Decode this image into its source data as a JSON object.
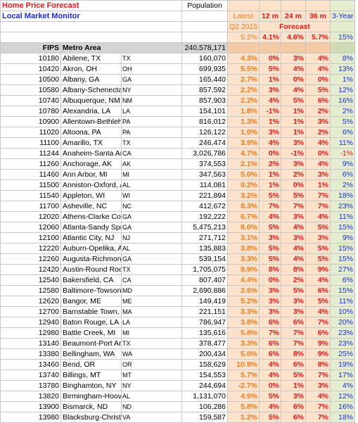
{
  "header": {
    "title": "Home Price Forecast",
    "subtitle": "Local Market Monitor",
    "population_label": "Population",
    "latest_label": "Latest",
    "m12_label": "12 m",
    "m24_label": "24 m",
    "m36_label": "36 m",
    "y3_label": "3-Year",
    "quarter_label": "Q2 2015",
    "forecast_label": "Forecast"
  },
  "summary": {
    "latest": "5.2%",
    "m12": "4.1%",
    "m24": "4.6%",
    "m36": "5.7%",
    "y3": "15%"
  },
  "columns": {
    "fips": "FIPS",
    "metro": "Metro Area",
    "population": "240,578,171"
  },
  "rows": [
    {
      "fips": "10180",
      "name": "Abilene, TX",
      "st": "TX",
      "pop": "160,070",
      "latest": "4.3%",
      "m12": "0%",
      "m24": "3%",
      "m36": "4%",
      "y3": "8%"
    },
    {
      "fips": "10420",
      "name": "Akron, OH",
      "st": "OH",
      "pop": "699,935",
      "latest": "5.5%",
      "m12": "5%",
      "m24": "4%",
      "m36": "4%",
      "y3": "13%"
    },
    {
      "fips": "10500",
      "name": "Albany, GA",
      "st": "GA",
      "pop": "165,440",
      "latest": "2.7%",
      "m12": "1%",
      "m24": "0%",
      "m36": "0%",
      "y3": "1%"
    },
    {
      "fips": "10580",
      "name": "Albany-Schenectady-Troy, NY",
      "st": "NY",
      "pop": "857,592",
      "latest": "2.2%",
      "m12": "3%",
      "m24": "4%",
      "m36": "5%",
      "y3": "12%"
    },
    {
      "fips": "10740",
      "name": "Albuquerque, NM",
      "st": "NM",
      "pop": "857,903",
      "latest": "2.2%",
      "m12": "4%",
      "m24": "5%",
      "m36": "6%",
      "y3": "16%"
    },
    {
      "fips": "10780",
      "name": "Alexandria, LA",
      "st": "LA",
      "pop": "154,101",
      "latest": "1.8%",
      "m12": "-1%",
      "m24": "1%",
      "m36": "2%",
      "y3": "2%"
    },
    {
      "fips": "10900",
      "name": "Allentown-Bethlehem-Easton, PA",
      "st": "PA",
      "pop": "816,012",
      "latest": "1.3%",
      "m12": "1%",
      "m24": "1%",
      "m36": "3%",
      "y3": "5%"
    },
    {
      "fips": "11020",
      "name": "Altoona, PA",
      "st": "PA",
      "pop": "126,122",
      "latest": "1.0%",
      "m12": "3%",
      "m24": "1%",
      "m36": "2%",
      "y3": "6%"
    },
    {
      "fips": "11100",
      "name": "Amarillo, TX",
      "st": "TX",
      "pop": "246,474",
      "latest": "3.9%",
      "m12": "4%",
      "m24": "3%",
      "m36": "4%",
      "y3": "11%"
    },
    {
      "fips": "11244",
      "name": "Anaheim-Santa Ana CA (MSAD)",
      "st": "CA",
      "pop": "3,026,786",
      "latest": "4.7%",
      "m12": "0%",
      "m24": "-1%",
      "m36": "0%",
      "y3": "-1%"
    },
    {
      "fips": "11260",
      "name": "Anchorage, AK",
      "st": "AK",
      "pop": "374,553",
      "latest": "2.1%",
      "m12": "2%",
      "m24": "3%",
      "m36": "4%",
      "y3": "9%"
    },
    {
      "fips": "11460",
      "name": "Ann Arbor, MI",
      "st": "MI",
      "pop": "347,563",
      "latest": "5.0%",
      "m12": "1%",
      "m24": "2%",
      "m36": "3%",
      "y3": "6%"
    },
    {
      "fips": "11500",
      "name": "Anniston-Oxford, AL",
      "st": "AL",
      "pop": "114,081",
      "latest": "0.2%",
      "m12": "1%",
      "m24": "0%",
      "m36": "1%",
      "y3": "2%"
    },
    {
      "fips": "11540",
      "name": "Appleton, WI",
      "st": "WI",
      "pop": "221,894",
      "latest": "3.2%",
      "m12": "5%",
      "m24": "5%",
      "m36": "7%",
      "y3": "18%"
    },
    {
      "fips": "11700",
      "name": "Asheville, NC",
      "st": "NC",
      "pop": "412,672",
      "latest": "8.3%",
      "m12": "7%",
      "m24": "7%",
      "m36": "7%",
      "y3": "23%"
    },
    {
      "fips": "12020",
      "name": "Athens-Clarke County, GA",
      "st": "GA",
      "pop": "192,222",
      "latest": "6.7%",
      "m12": "4%",
      "m24": "3%",
      "m36": "4%",
      "y3": "11%"
    },
    {
      "fips": "12060",
      "name": "Atlanta-Sandy Springs-Marietta, GA",
      "st": "GA",
      "pop": "5,475,213",
      "latest": "8.0%",
      "m12": "5%",
      "m24": "4%",
      "m36": "5%",
      "y3": "15%"
    },
    {
      "fips": "12100",
      "name": "Atlantic City, NJ",
      "st": "NJ",
      "pop": "271,712",
      "latest": "3.1%",
      "m12": "3%",
      "m24": "3%",
      "m36": "3%",
      "y3": "9%"
    },
    {
      "fips": "12220",
      "name": "Auburn-Opelika, AL",
      "st": "AL",
      "pop": "135,883",
      "latest": "3.8%",
      "m12": "5%",
      "m24": "4%",
      "m36": "5%",
      "y3": "15%"
    },
    {
      "fips": "12260",
      "name": "Augusta-Richmond County, GA",
      "st": "GA",
      "pop": "539,154",
      "latest": "3.3%",
      "m12": "5%",
      "m24": "4%",
      "m36": "5%",
      "y3": "15%"
    },
    {
      "fips": "12420",
      "name": "Austin-Round Rock, TX",
      "st": "TX",
      "pop": "1,705,075",
      "latest": "9.9%",
      "m12": "8%",
      "m24": "8%",
      "m36": "9%",
      "y3": "27%"
    },
    {
      "fips": "12540",
      "name": "Bakersfield, CA",
      "st": "CA",
      "pop": "807,407",
      "latest": "4.4%",
      "m12": "0%",
      "m24": "2%",
      "m36": "4%",
      "y3": "6%"
    },
    {
      "fips": "12580",
      "name": "Baltimore-Towson, MD",
      "st": "MD",
      "pop": "2,690,886",
      "latest": "2.6%",
      "m12": "3%",
      "m24": "5%",
      "m36": "6%",
      "y3": "15%"
    },
    {
      "fips": "12620",
      "name": "Bangor, ME",
      "st": "ME",
      "pop": "149,419",
      "latest": "5.2%",
      "m12": "3%",
      "m24": "3%",
      "m36": "5%",
      "y3": "11%"
    },
    {
      "fips": "12700",
      "name": "Barnstable Town, MA",
      "st": "MA",
      "pop": "221,151",
      "latest": "3.3%",
      "m12": "3%",
      "m24": "3%",
      "m36": "4%",
      "y3": "10%"
    },
    {
      "fips": "12940",
      "name": "Baton Rouge, LA",
      "st": "LA",
      "pop": "786,947",
      "latest": "3.8%",
      "m12": "6%",
      "m24": "6%",
      "m36": "7%",
      "y3": "20%"
    },
    {
      "fips": "12980",
      "name": "Battle Creek, MI",
      "st": "MI",
      "pop": "135,616",
      "latest": "5.8%",
      "m12": "7%",
      "m24": "7%",
      "m36": "6%",
      "y3": "23%"
    },
    {
      "fips": "13140",
      "name": "Beaumont-Port Arthur, TX",
      "st": "TX",
      "pop": "378,477",
      "latest": "3.3%",
      "m12": "6%",
      "m24": "7%",
      "m36": "9%",
      "y3": "23%"
    },
    {
      "fips": "13380",
      "name": "Bellingham, WA",
      "st": "WA",
      "pop": "200,434",
      "latest": "5.0%",
      "m12": "6%",
      "m24": "8%",
      "m36": "9%",
      "y3": "25%"
    },
    {
      "fips": "13460",
      "name": "Bend, OR",
      "st": "OR",
      "pop": "158,629",
      "latest": "10.9%",
      "m12": "4%",
      "m24": "6%",
      "m36": "8%",
      "y3": "19%"
    },
    {
      "fips": "13740",
      "name": "Billings, MT",
      "st": "MT",
      "pop": "154,553",
      "latest": "5.7%",
      "m12": "4%",
      "m24": "5%",
      "m36": "7%",
      "y3": "17%"
    },
    {
      "fips": "13780",
      "name": "Binghamton, NY",
      "st": "NY",
      "pop": "244,694",
      "latest": "-2.7%",
      "m12": "0%",
      "m24": "1%",
      "m36": "3%",
      "y3": "4%"
    },
    {
      "fips": "13820",
      "name": "Birmingham-Hoover, AL",
      "st": "AL",
      "pop": "1,131,070",
      "latest": "4.9%",
      "m12": "5%",
      "m24": "3%",
      "m36": "4%",
      "y3": "12%"
    },
    {
      "fips": "13900",
      "name": "Bismarck, ND",
      "st": "ND",
      "pop": "106,286",
      "latest": "5.8%",
      "m12": "4%",
      "m24": "6%",
      "m36": "7%",
      "y3": "16%"
    },
    {
      "fips": "13980",
      "name": "Blacksburg-Christiansburg-Radford, VA",
      "st": "VA",
      "pop": "159,587",
      "latest": "1.2%",
      "m12": "5%",
      "m24": "6%",
      "m36": "7%",
      "y3": "18%"
    }
  ]
}
